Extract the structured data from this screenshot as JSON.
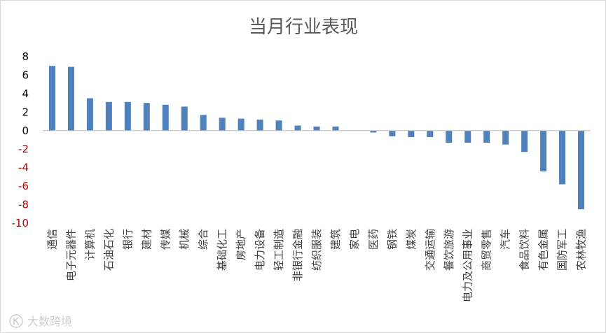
{
  "chart_data": {
    "type": "bar",
    "title": "当月行业表现",
    "xlabel": "",
    "ylabel": "",
    "ylim": [
      -10,
      8
    ],
    "yticks": [
      8,
      6,
      4,
      2,
      0,
      -2,
      -4,
      -6,
      -8,
      -10
    ],
    "grid": false,
    "legend": "none",
    "categories": [
      "通信",
      "电子元器件",
      "计算机",
      "石油石化",
      "银行",
      "建材",
      "传媒",
      "机械",
      "综合",
      "基础化工",
      "房地产",
      "电力设备",
      "轻工制造",
      "非银行金融",
      "纺织服装",
      "建筑",
      "家电",
      "医药",
      "钢铁",
      "煤炭",
      "交通运输",
      "餐饮旅游",
      "电力及公用事业",
      "商贸零售",
      "汽车",
      "食品饮料",
      "有色金属",
      "国防军工",
      "农林牧渔"
    ],
    "values": [
      7.0,
      6.9,
      3.5,
      3.1,
      3.1,
      3.0,
      2.8,
      2.6,
      1.7,
      1.4,
      1.3,
      1.2,
      1.1,
      0.55,
      0.45,
      0.45,
      0.0,
      -0.2,
      -0.6,
      -0.7,
      -0.7,
      -1.3,
      -1.3,
      -1.3,
      -1.5,
      -2.3,
      -4.4,
      -5.8,
      -8.5
    ],
    "colors": {
      "bar": "#4f81bd",
      "positive_tick": "#000000",
      "negative_tick": "#c00000",
      "axis": "#bfbfbf"
    }
  },
  "watermark": {
    "text": "大数跨境",
    "icon": "ks-logo-icon"
  }
}
